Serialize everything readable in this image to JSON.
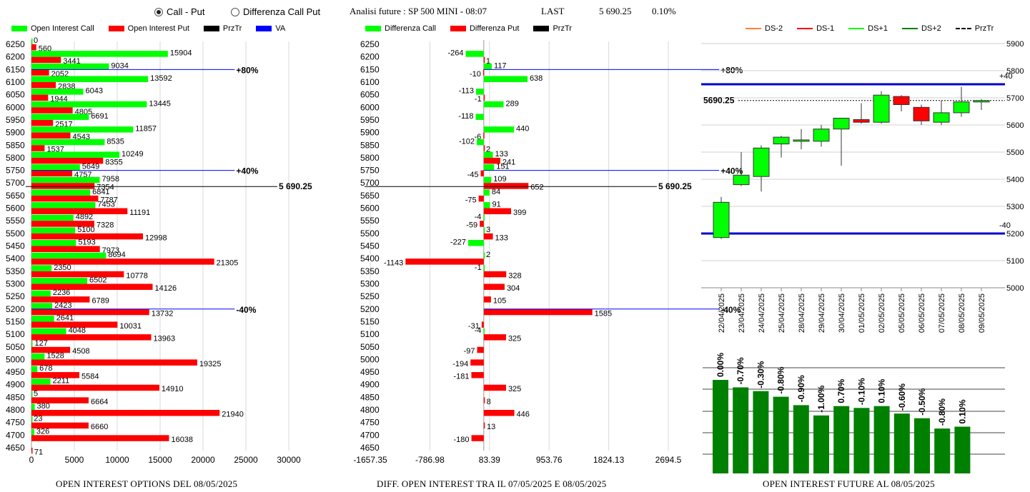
{
  "header": {
    "radio_call_put": "Call - Put",
    "radio_diff": "Differenza Call Put",
    "title": "Analisi future : SP 500 MINI - 08:07",
    "last_label": "LAST",
    "last_value": "5 690.25",
    "change": "0.10%"
  },
  "colors": {
    "green": "#00ff00",
    "red": "#ff0000",
    "dark_green": "#008000",
    "blue": "#0000cc"
  },
  "legend1": [
    {
      "label": "Open Interest Call",
      "color": "#00ff00"
    },
    {
      "label": "Open Interest Put",
      "color": "#ff0000"
    },
    {
      "label": "PrzTr",
      "color": "#000000"
    },
    {
      "label": "VA",
      "color": "#0000ff"
    }
  ],
  "legend2": [
    {
      "label": "Differenza Call",
      "color": "#00ff00"
    },
    {
      "label": "Differenza Put",
      "color": "#ff0000"
    },
    {
      "label": "PrzTr",
      "color": "#000000"
    }
  ],
  "legend3": [
    {
      "label": "DS-2",
      "color": "#ff8040"
    },
    {
      "label": "DS-1",
      "color": "#ff0000"
    },
    {
      "label": "DS+1",
      "color": "#00ff00"
    },
    {
      "label": "DS+2",
      "color": "#008000"
    },
    {
      "label": "PrzTr",
      "color": "#000000"
    }
  ],
  "chart_data": [
    {
      "type": "bar",
      "orientation": "horizontal",
      "title": "OPEN INTEREST OPTIONS DEL 08/05/2025",
      "categories": [
        6250,
        6200,
        6150,
        6100,
        6050,
        6000,
        5950,
        5900,
        5850,
        5800,
        5750,
        5700,
        5650,
        5600,
        5550,
        5500,
        5450,
        5400,
        5350,
        5300,
        5250,
        5200,
        5150,
        5100,
        5050,
        5000,
        4950,
        4900,
        4850,
        4800,
        4750,
        4700,
        4650
      ],
      "series": [
        {
          "name": "Open Interest Call",
          "values": [
            0,
            15904,
            9034,
            13592,
            6043,
            13445,
            6691,
            11857,
            8535,
            10249,
            5649,
            7958,
            6841,
            7453,
            4892,
            5100,
            5193,
            8694,
            2350,
            6502,
            2236,
            2423,
            2641,
            4048,
            127,
            1528,
            678,
            2211,
            5,
            380,
            23,
            326,
            null
          ]
        },
        {
          "name": "Open Interest Put",
          "values": [
            560,
            3441,
            2052,
            2838,
            1944,
            4805,
            2517,
            4543,
            1537,
            8355,
            4757,
            7354,
            7787,
            11191,
            7328,
            12998,
            7973,
            21305,
            10778,
            14126,
            6789,
            13732,
            10031,
            13963,
            4508,
            19325,
            5584,
            14910,
            6664,
            21940,
            6660,
            16038,
            71
          ]
        }
      ],
      "xlim": [
        0,
        30000
      ],
      "xticks": [
        "0",
        "5000",
        "10000",
        "15000",
        "20000",
        "25000",
        "30000"
      ],
      "ref_lines": [
        {
          "strike": 6150,
          "label": "+80%",
          "kind": "VA"
        },
        {
          "strike": 5750,
          "label": "+40%",
          "kind": "VA"
        },
        {
          "strike": 5700,
          "label": "5 690.25",
          "kind": "PrzTr"
        },
        {
          "strike": 5200,
          "label": "-40%",
          "kind": "VA"
        }
      ]
    },
    {
      "type": "bar",
      "orientation": "horizontal",
      "title": "DIFF. OPEN INTEREST TRA IL 07/05/2025 E 08/05/2025",
      "categories": [
        6250,
        6200,
        6150,
        6100,
        6050,
        6000,
        5950,
        5900,
        5850,
        5800,
        5750,
        5700,
        5650,
        5600,
        5550,
        5500,
        5450,
        5400,
        5350,
        5300,
        5250,
        5200,
        5150,
        5100,
        5050,
        5000,
        4950,
        4900,
        4850,
        4800,
        4750,
        4700,
        4650
      ],
      "series": [
        {
          "name": "Differenza Call",
          "values": [
            null,
            -264,
            117,
            638,
            -113,
            289,
            -118,
            440,
            -102,
            133,
            151,
            109,
            84,
            91,
            -4,
            3,
            -227,
            2,
            -1,
            null,
            null,
            null,
            null,
            -4,
            null,
            null,
            null,
            null,
            null,
            null,
            null,
            null,
            null
          ]
        },
        {
          "name": "Differenza Put",
          "values": [
            null,
            1,
            -10,
            null,
            -1,
            null,
            null,
            -6,
            2,
            241,
            -45,
            652,
            -75,
            399,
            -59,
            133,
            null,
            -1143,
            328,
            304,
            105,
            1585,
            -31,
            325,
            -97,
            -194,
            -181,
            325,
            8,
            446,
            13,
            -180,
            null
          ]
        }
      ],
      "xlim": [
        -1657.35,
        2694.5
      ],
      "xticks": [
        "-1657.35",
        "-786.98",
        "83.39",
        "953.76",
        "1824.13",
        "2694.5"
      ],
      "ref_lines": [
        {
          "strike": 6150,
          "label": "+80%",
          "kind": "VA"
        },
        {
          "strike": 5750,
          "label": "+40%",
          "kind": "VA"
        },
        {
          "strike": 5700,
          "label": "5 690.25",
          "kind": "PrzTr"
        },
        {
          "strike": 5200,
          "label": "-40%",
          "kind": "VA"
        }
      ]
    },
    {
      "type": "candlestick",
      "dates": [
        "22/04/2025",
        "23/04/2025",
        "24/04/2025",
        "25/04/2025",
        "28/04/2025",
        "29/04/2025",
        "30/04/2025",
        "01/05/2025",
        "02/05/2025",
        "05/05/2025",
        "06/05/2025",
        "07/05/2025",
        "08/05/2025",
        "09/05/2025"
      ],
      "ohlc": [
        [
          5185,
          5335,
          5180,
          5315
        ],
        [
          5380,
          5500,
          5375,
          5415
        ],
        [
          5410,
          5525,
          5355,
          5515
        ],
        [
          5530,
          5560,
          5480,
          5555
        ],
        [
          5545,
          5585,
          5510,
          5545
        ],
        [
          5540,
          5600,
          5520,
          5585
        ],
        [
          5585,
          5625,
          5450,
          5625
        ],
        [
          5620,
          5680,
          5605,
          5610
        ],
        [
          5610,
          5725,
          5605,
          5710
        ],
        [
          5705,
          5710,
          5650,
          5675
        ],
        [
          5665,
          5675,
          5600,
          5615
        ],
        [
          5610,
          5690,
          5600,
          5645
        ],
        [
          5645,
          5740,
          5630,
          5685
        ],
        [
          5685,
          5695,
          5655,
          5690
        ]
      ],
      "ylim": [
        5000,
        5900
      ],
      "yticks": [
        "5900",
        "5800",
        "5700",
        "5600",
        "5500",
        "5400",
        "5300",
        "5200",
        "5100",
        "5000"
      ],
      "hlines": [
        {
          "value": 5750,
          "label": "+40"
        },
        {
          "value": 5200,
          "label": "-40"
        }
      ],
      "last_line": {
        "value": 5690.25,
        "label": "5690.25"
      }
    },
    {
      "type": "bar",
      "title": "OPEN INTEREST FUTURE AL 08/05/2025",
      "labels": [
        "0.00%",
        "-0.70%",
        "-0.30%",
        "-0.80%",
        "-0.90%",
        "-1.00%",
        "0.70%",
        "-0.10%",
        "0.10%",
        "-0.60%",
        "-0.50%",
        "-0.80%",
        "0.10%"
      ],
      "values": [
        100,
        92,
        88,
        82,
        73,
        62,
        72,
        70,
        72,
        64,
        59,
        48,
        50
      ]
    }
  ]
}
